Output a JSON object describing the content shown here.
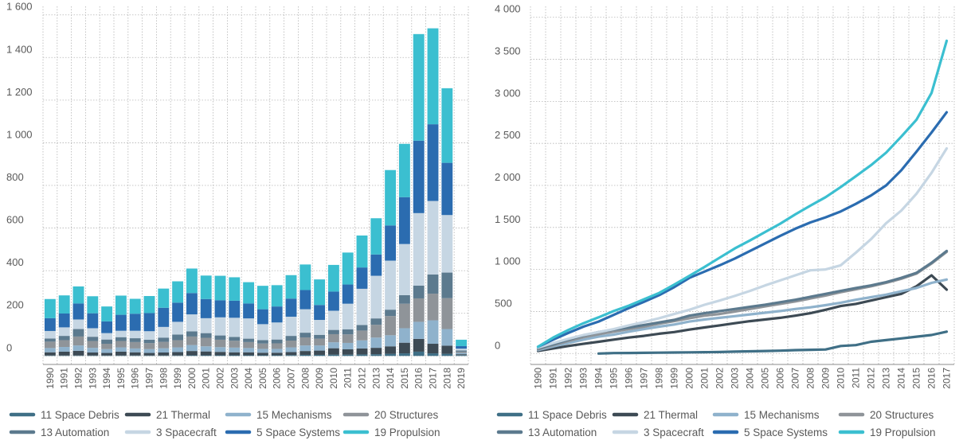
{
  "colors": {
    "11 Space Debris": "#3f6f86",
    "21 Thermal": "#3d4a54",
    "15 Mechanisms": "#8fb2cc",
    "20 Structures": "#8f9499",
    "13 Automation": "#5c7a8e",
    "3 Spacecraft": "#c6d6e3",
    "5 Space Systems": "#2b6cb0",
    "19 Propulsion": "#3bbfd0"
  },
  "legend": {
    "row1": [
      "11 Space Debris",
      "21 Thermal",
      "15 Mechanisms",
      "20 Structures"
    ],
    "row2": [
      "13 Automation",
      "3 Spacecraft",
      "5 Space Systems",
      "19 Propulsion"
    ]
  },
  "chart_data": [
    {
      "type": "bar",
      "stacked": true,
      "categories": [
        "1990",
        "1991",
        "1992",
        "1993",
        "1994",
        "1995",
        "1996",
        "1997",
        "1998",
        "1999",
        "2000",
        "2001",
        "2002",
        "2003",
        "2004",
        "2005",
        "2006",
        "2007",
        "2008",
        "2009",
        "2010",
        "2011",
        "2012",
        "2013",
        "2014",
        "2015",
        "2016",
        "2017",
        "2018",
        "2019"
      ],
      "yticks": [
        0,
        200,
        400,
        600,
        800,
        1000,
        1200,
        1400,
        1600
      ],
      "ytick_labels": [
        "0",
        "200",
        "400",
        "600",
        "800",
        "1 000",
        "1 200",
        "1 400",
        "1 600"
      ],
      "ylim": [
        -40,
        1640
      ],
      "grid": true,
      "legend_position": "bottom",
      "series": [
        {
          "name": "11 Space Debris",
          "values": [
            2,
            2,
            2,
            2,
            2,
            2,
            2,
            2,
            2,
            2,
            3,
            3,
            3,
            3,
            3,
            3,
            3,
            4,
            5,
            5,
            6,
            6,
            7,
            8,
            10,
            12,
            20,
            12,
            10,
            4
          ]
        },
        {
          "name": "21 Thermal",
          "values": [
            15,
            18,
            22,
            14,
            12,
            18,
            15,
            12,
            14,
            16,
            20,
            18,
            16,
            14,
            14,
            12,
            12,
            14,
            18,
            20,
            30,
            25,
            28,
            30,
            35,
            50,
            60,
            45,
            38,
            4
          ]
        },
        {
          "name": "15 Mechanisms",
          "values": [
            20,
            22,
            25,
            22,
            18,
            20,
            18,
            18,
            20,
            22,
            28,
            24,
            22,
            22,
            20,
            18,
            18,
            22,
            26,
            24,
            28,
            30,
            38,
            48,
            52,
            68,
            80,
            110,
            78,
            6
          ]
        },
        {
          "name": "20 Structures",
          "values": [
            30,
            32,
            42,
            32,
            25,
            30,
            30,
            28,
            30,
            34,
            40,
            40,
            35,
            32,
            28,
            25,
            26,
            32,
            38,
            32,
            38,
            40,
            46,
            60,
            90,
            115,
            110,
            125,
            145,
            6
          ]
        },
        {
          "name": "13 Automation",
          "values": [
            15,
            20,
            35,
            20,
            20,
            18,
            18,
            16,
            20,
            26,
            24,
            22,
            20,
            18,
            16,
            16,
            18,
            22,
            22,
            18,
            20,
            24,
            26,
            30,
            30,
            40,
            60,
            90,
            120,
            6
          ]
        },
        {
          "name": "3 Spacecraft",
          "values": [
            35,
            40,
            45,
            40,
            30,
            30,
            35,
            40,
            50,
            60,
            80,
            70,
            85,
            90,
            95,
            75,
            80,
            90,
            110,
            70,
            90,
            120,
            170,
            200,
            230,
            240,
            340,
            345,
            270,
            8
          ]
        },
        {
          "name": "5 Space Systems",
          "values": [
            60,
            65,
            75,
            70,
            55,
            75,
            80,
            85,
            90,
            90,
            100,
            90,
            80,
            80,
            70,
            70,
            75,
            85,
            90,
            70,
            90,
            90,
            100,
            100,
            165,
            220,
            340,
            360,
            245,
            12
          ]
        },
        {
          "name": "19 Propulsion",
          "values": [
            90,
            85,
            80,
            80,
            70,
            90,
            70,
            80,
            90,
            100,
            115,
            110,
            115,
            110,
            100,
            110,
            100,
            110,
            120,
            120,
            125,
            150,
            150,
            170,
            260,
            250,
            500,
            450,
            350,
            30
          ]
        }
      ]
    },
    {
      "type": "line",
      "x": [
        "1990",
        "1991",
        "1992",
        "1993",
        "1994",
        "1995",
        "1996",
        "1997",
        "1998",
        "1999",
        "2000",
        "2001",
        "2002",
        "2003",
        "2004",
        "2005",
        "2006",
        "2007",
        "2008",
        "2009",
        "2010",
        "2011",
        "2012",
        "2013",
        "2014",
        "2015",
        "2016",
        "2017"
      ],
      "yticks": [
        0,
        500,
        1000,
        1500,
        2000,
        2500,
        3000,
        3500,
        4000
      ],
      "ytick_labels": [
        "0",
        "500",
        "1 000",
        "1 500",
        "2 000",
        "2 500",
        "3 000",
        "3 500",
        "4 000"
      ],
      "ylim": [
        -130,
        4130
      ],
      "grid": true,
      "legend_position": "bottom",
      "series": [
        {
          "name": "11 Space Debris",
          "values": [
            null,
            null,
            null,
            null,
            0,
            5,
            6,
            8,
            10,
            12,
            14,
            16,
            18,
            22,
            26,
            30,
            34,
            40,
            44,
            48,
            90,
            100,
            140,
            160,
            180,
            200,
            220,
            260
          ]
        },
        {
          "name": "21 Thermal",
          "values": [
            30,
            60,
            90,
            115,
            140,
            165,
            190,
            210,
            235,
            255,
            285,
            310,
            335,
            360,
            385,
            405,
            425,
            450,
            480,
            520,
            565,
            590,
            630,
            670,
            710,
            800,
            930,
            760
          ]
        },
        {
          "name": "15 Mechanisms",
          "values": [
            40,
            85,
            125,
            165,
            200,
            225,
            260,
            290,
            320,
            345,
            380,
            405,
            425,
            445,
            465,
            485,
            505,
            530,
            550,
            575,
            605,
            640,
            670,
            700,
            740,
            780,
            840,
            880
          ]
        },
        {
          "name": "20 Structures",
          "values": [
            50,
            100,
            150,
            195,
            230,
            260,
            290,
            320,
            355,
            385,
            420,
            450,
            470,
            500,
            530,
            560,
            590,
            620,
            655,
            690,
            730,
            765,
            800,
            840,
            890,
            950,
            1070,
            1210
          ]
        },
        {
          "name": "13 Automation",
          "values": [
            60,
            110,
            165,
            215,
            255,
            285,
            310,
            340,
            370,
            400,
            450,
            480,
            505,
            530,
            555,
            580,
            610,
            640,
            675,
            710,
            745,
            780,
            810,
            850,
            900,
            960,
            1080,
            1220
          ]
        },
        {
          "name": "3 Spacecraft",
          "values": [
            70,
            125,
            175,
            220,
            255,
            290,
            335,
            375,
            420,
            470,
            520,
            580,
            630,
            685,
            745,
            810,
            870,
            930,
            990,
            1000,
            1050,
            1200,
            1360,
            1550,
            1700,
            1900,
            2150,
            2440
          ]
        },
        {
          "name": "5 Space Systems",
          "values": [
            80,
            165,
            245,
            320,
            380,
            460,
            540,
            615,
            695,
            790,
            900,
            975,
            1050,
            1130,
            1220,
            1310,
            1400,
            1485,
            1560,
            1620,
            1690,
            1780,
            1880,
            2000,
            2180,
            2400,
            2630,
            2870
          ]
        },
        {
          "name": "19 Propulsion",
          "values": [
            80,
            190,
            280,
            360,
            430,
            505,
            570,
            645,
            720,
            820,
            925,
            1030,
            1140,
            1250,
            1345,
            1445,
            1545,
            1655,
            1760,
            1860,
            1980,
            2110,
            2240,
            2390,
            2580,
            2780,
            3100,
            3720
          ]
        }
      ]
    }
  ]
}
